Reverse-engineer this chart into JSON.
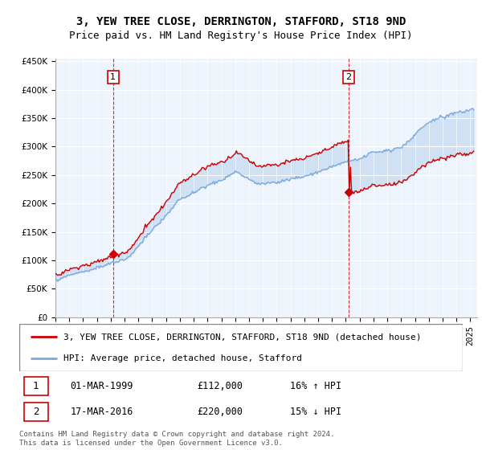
{
  "title": "3, YEW TREE CLOSE, DERRINGTON, STAFFORD, ST18 9ND",
  "subtitle": "Price paid vs. HM Land Registry's House Price Index (HPI)",
  "ylim": [
    0,
    450000
  ],
  "yticks": [
    0,
    50000,
    100000,
    150000,
    200000,
    250000,
    300000,
    350000,
    400000,
    450000
  ],
  "xlim_start": 1995.0,
  "xlim_end": 2025.5,
  "sale1_year": 1999.17,
  "sale1_price": 112000,
  "sale2_year": 2016.21,
  "sale2_price": 220000,
  "legend_line1": "3, YEW TREE CLOSE, DERRINGTON, STAFFORD, ST18 9ND (detached house)",
  "legend_line2": "HPI: Average price, detached house, Stafford",
  "table_row1": [
    "1",
    "01-MAR-1999",
    "£112,000",
    "16% ↑ HPI"
  ],
  "table_row2": [
    "2",
    "17-MAR-2016",
    "£220,000",
    "15% ↓ HPI"
  ],
  "footnote": "Contains HM Land Registry data © Crown copyright and database right 2024.\nThis data is licensed under the Open Government Licence v3.0.",
  "property_color": "#cc0000",
  "hpi_color": "#7aaadd",
  "fill_color": "#ddeeff",
  "vline_color": "#cc0000",
  "grid_color": "#cccccc",
  "chart_bg": "#eef4fc",
  "title_fontsize": 10,
  "subtitle_fontsize": 9,
  "tick_fontsize": 7.5,
  "legend_fontsize": 8,
  "table_fontsize": 8.5
}
